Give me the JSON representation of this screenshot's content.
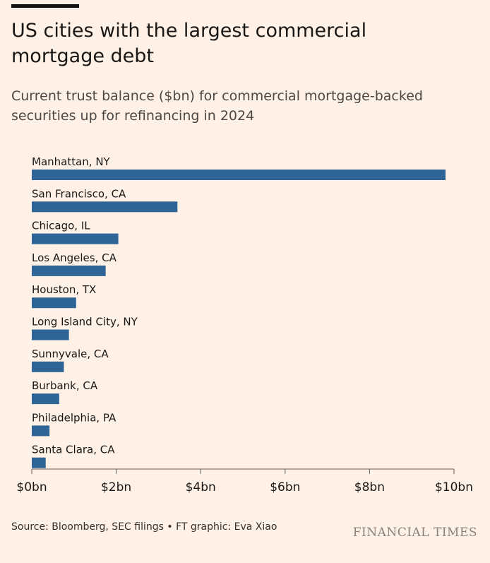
{
  "title": "US cities with the largest commercial mortgage debt",
  "subtitle": "Current trust balance ($bn) for commercial mortgage-backed securities up for refinancing in 2024",
  "source": "Source: Bloomberg, SEC filings • FT graphic: Eva Xiao",
  "brand": "FINANCIAL TIMES",
  "colors": {
    "bar": "#2e6496",
    "background": "#fff1e5",
    "axis": "#66605c"
  },
  "chart_data": {
    "type": "bar",
    "orientation": "horizontal",
    "title": "US cities with the largest commercial mortgage debt",
    "subtitle": "Current trust balance ($bn) for commercial mortgage-backed securities up for refinancing in 2024",
    "xlabel": "",
    "ylabel": "",
    "categories": [
      "Manhattan, NY",
      "San Francisco, CA",
      "Chicago, IL",
      "Los Angeles, CA",
      "Houston, TX",
      "Long Island City, NY",
      "Sunnyvale, CA",
      "Burbank, CA",
      "Philadelphia, PA",
      "Santa Clara, CA"
    ],
    "values": [
      9.8,
      3.45,
      2.05,
      1.75,
      1.05,
      0.88,
      0.76,
      0.65,
      0.42,
      0.33
    ],
    "xlim": [
      0,
      10
    ],
    "ticks": [
      0,
      2,
      4,
      6,
      8,
      10
    ],
    "tick_labels": [
      "$0bn",
      "$2bn",
      "$4bn",
      "$6bn",
      "$8bn",
      "$10bn"
    ],
    "grid": false,
    "legend": "none"
  }
}
